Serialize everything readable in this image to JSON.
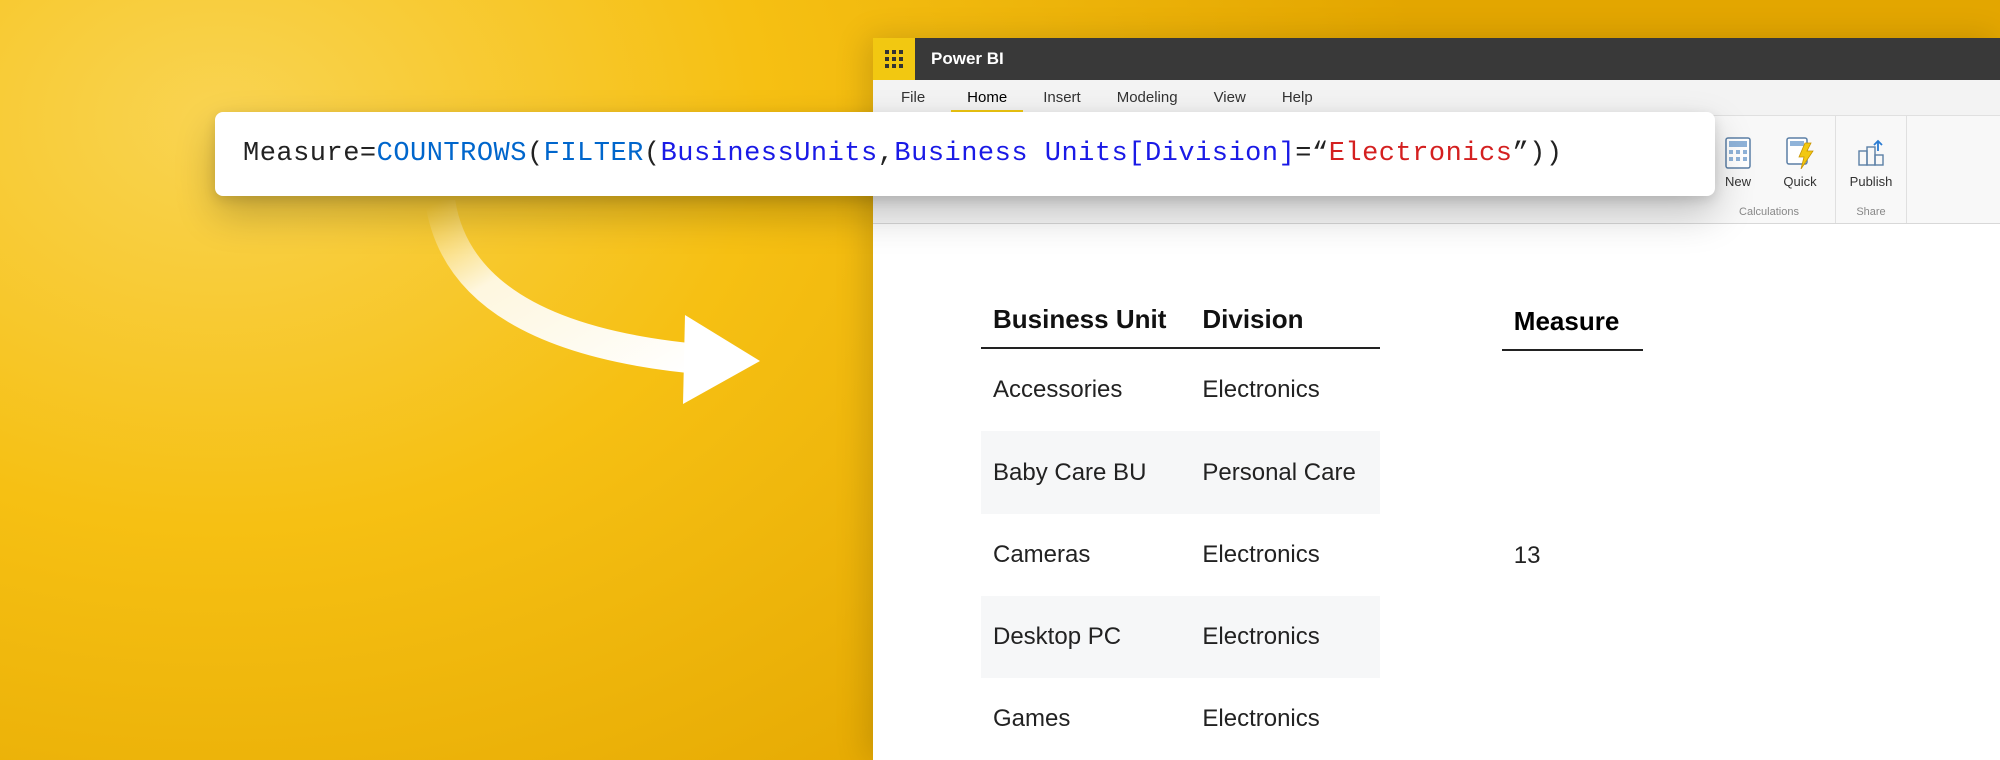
{
  "background": {
    "gradient_inner": "#f9d452",
    "gradient_mid": "#f6c013",
    "gradient_outer": "#e3a600"
  },
  "app": {
    "brand_color": "#f2c811",
    "titlebar_bg": "#393939",
    "title": "Power BI",
    "menus": {
      "file": "File",
      "home": "Home",
      "insert": "Insert",
      "modeling": "Modeling",
      "view": "View",
      "help": "Help",
      "active": "home"
    },
    "ribbon": {
      "calculations": {
        "group_label": "Calculations",
        "new_label": "New",
        "quick_label": "Quick"
      },
      "share": {
        "group_label": "Share",
        "publish_label": "Publish"
      }
    }
  },
  "formula": {
    "lhs": "Measure",
    "eq": " = ",
    "fn1": "COUNTROWS",
    "p1": "(",
    "fn2": "FILTER",
    "p2": "(",
    "arg1": "BusinessUnits",
    "comma": ", ",
    "arg2a": "Business Units",
    "arg2b": "[",
    "arg2c": "Division",
    "arg2d": "]",
    "eqop": "=",
    "q1": "“",
    "strval": "Electronics",
    "q2": "”",
    "p3": ")",
    "p4": ")"
  },
  "main_table": {
    "columns": [
      "Business Unit",
      "Division"
    ],
    "rows": [
      [
        "Accessories",
        "Electronics"
      ],
      [
        "Baby Care BU",
        "Personal Care"
      ],
      [
        "Cameras",
        "Electronics"
      ],
      [
        "Desktop PC",
        "Electronics"
      ],
      [
        "Games",
        "Electronics"
      ]
    ],
    "row_stripe_color": "#f6f7f8",
    "header_underline": "#222222"
  },
  "measure_table": {
    "header": "Measure",
    "value": "13"
  },
  "arrow": {
    "color": "#ffffff"
  }
}
